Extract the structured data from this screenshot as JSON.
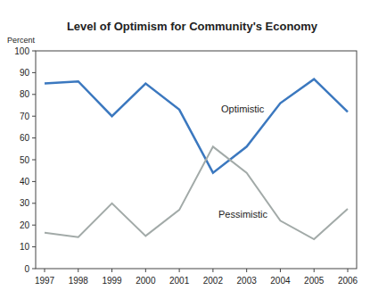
{
  "chart_data": {
    "type": "line",
    "title": "Level of Optimism for Community's Economy",
    "y_label": "Percent",
    "categories": [
      "1997",
      "1998",
      "1999",
      "2000",
      "2001",
      "2002",
      "2003",
      "2004",
      "2005",
      "2006"
    ],
    "series": [
      {
        "name": "Optimistic",
        "color": "#3b78bf",
        "values": [
          85,
          86,
          70,
          85,
          73,
          44,
          56,
          76,
          87,
          72
        ]
      },
      {
        "name": "Pessimistic",
        "color": "#a2aaa8",
        "values": [
          16.5,
          14.5,
          30,
          15,
          27,
          56,
          44,
          22,
          13.5,
          27.5
        ]
      }
    ],
    "ylim": [
      0,
      100
    ],
    "yticks": [
      0,
      10,
      20,
      30,
      40,
      50,
      60,
      70,
      80,
      90,
      100
    ],
    "grid": false
  }
}
